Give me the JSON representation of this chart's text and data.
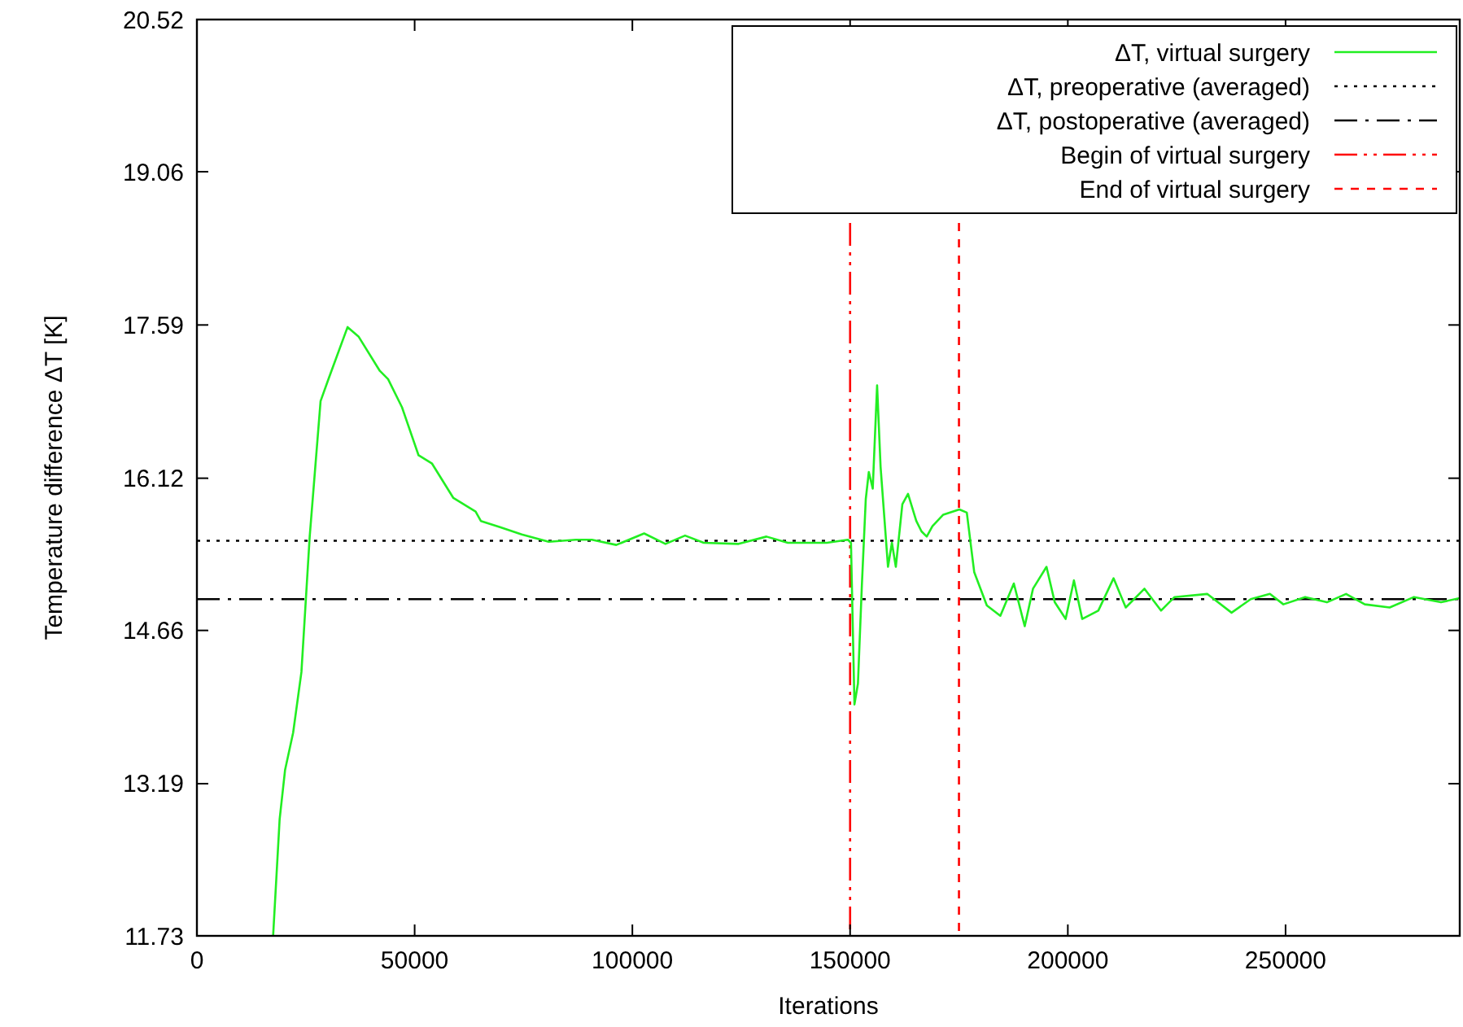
{
  "chart_data": {
    "type": "line",
    "xlabel": "Iterations",
    "ylabel": "Temperature difference ΔT [K]",
    "xlim": [
      0,
      290000
    ],
    "xticks": [
      0,
      50000,
      100000,
      150000,
      200000,
      250000
    ],
    "ylim": [
      11.73,
      20.52
    ],
    "yticks": [
      11.73,
      13.19,
      14.66,
      16.12,
      17.59,
      19.06,
      20.52
    ],
    "grid": false,
    "legend": "top right",
    "line_style": "solid",
    "series": [
      {
        "name": "ΔT, virtual surgery",
        "color": "#22ee22",
        "x": [
          17500,
          19000,
          20240,
          22100,
          24000,
          25900,
          28400,
          30200,
          34600,
          37100,
          42000,
          43900,
          47100,
          50900,
          54000,
          58900,
          64000,
          65200,
          69600,
          74600,
          80800,
          87000,
          90700,
          96300,
          102700,
          107600,
          112100,
          116400,
          124400,
          130800,
          135700,
          144600,
          149500,
          150200,
          151000,
          151800,
          152700,
          153600,
          154300,
          155200,
          156200,
          157000,
          158700,
          159600,
          160500,
          162000,
          163300,
          165200,
          166400,
          167600,
          168900,
          171400,
          175100,
          176800,
          178500,
          181400,
          184500,
          187600,
          190100,
          192000,
          195100,
          197000,
          199500,
          201400,
          203300,
          207000,
          210500,
          213300,
          217600,
          221400,
          224500,
          232000,
          237600,
          242000,
          246400,
          249500,
          254500,
          259500,
          263900,
          268200,
          273900,
          279500,
          285700,
          290000
        ],
        "values": [
          11.73,
          12.85,
          13.32,
          13.68,
          14.26,
          15.56,
          16.86,
          17.07,
          17.57,
          17.48,
          17.15,
          17.07,
          16.8,
          16.34,
          16.26,
          15.93,
          15.8,
          15.71,
          15.65,
          15.58,
          15.51,
          15.53,
          15.53,
          15.48,
          15.59,
          15.49,
          15.57,
          15.5,
          15.49,
          15.56,
          15.5,
          15.5,
          15.53,
          15.5,
          13.95,
          14.15,
          15.09,
          15.92,
          16.18,
          16.02,
          17.01,
          16.23,
          15.27,
          15.5,
          15.27,
          15.87,
          15.97,
          15.71,
          15.61,
          15.56,
          15.66,
          15.77,
          15.82,
          15.79,
          15.22,
          14.9,
          14.8,
          15.11,
          14.7,
          15.06,
          15.27,
          14.93,
          14.77,
          15.14,
          14.77,
          14.85,
          15.16,
          14.88,
          15.06,
          14.85,
          14.98,
          15.01,
          14.83,
          14.96,
          15.01,
          14.91,
          14.98,
          14.93,
          15.01,
          14.91,
          14.88,
          14.98,
          14.93,
          14.97
        ]
      }
    ],
    "ref_lines": [
      {
        "axis": "y",
        "value": 15.52,
        "label": "ΔT, preoperative (averaged)",
        "color": "#000000",
        "line_style": "dotted"
      },
      {
        "axis": "y",
        "value": 14.96,
        "label": "ΔT, postoperative (averaged)",
        "color": "#000000",
        "line_style": "dashdot"
      },
      {
        "axis": "x",
        "value": 150000,
        "label": "Begin of virtual surgery",
        "color": "#ff0000",
        "line_style": "dashdotdot"
      },
      {
        "axis": "x",
        "value": 175000,
        "label": "End of virtual surgery",
        "color": "#ff0000",
        "line_style": "dashed"
      }
    ]
  }
}
